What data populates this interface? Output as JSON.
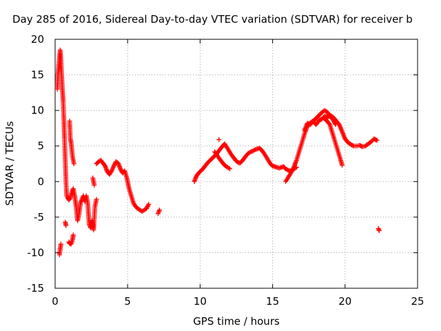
{
  "chart_data": {
    "type": "scatter",
    "title": "Day 285 of 2016, Sidereal Day-to-day VTEC variation (SDTVAR) for receiver b",
    "xlabel": "GPS time / hours",
    "ylabel": "SDTVAR / TECUs",
    "xlim": [
      0,
      25
    ],
    "ylim": [
      -15,
      20
    ],
    "xticks": [
      "0",
      "5",
      "10",
      "15",
      "20",
      "25"
    ],
    "yticks": [
      "-15",
      "-10",
      "-5",
      "0",
      "5",
      "10",
      "15",
      "20"
    ],
    "grid": true,
    "marker": "+",
    "color": "#ff0000",
    "series": [
      {
        "name": "SDTVAR",
        "segments": [
          [
            [
              0.15,
              13
            ],
            [
              0.2,
              15
            ],
            [
              0.25,
              16.5
            ],
            [
              0.3,
              17.5
            ],
            [
              0.35,
              18.5
            ],
            [
              0.4,
              17
            ],
            [
              0.45,
              15
            ],
            [
              0.5,
              13
            ],
            [
              0.55,
              11.5
            ],
            [
              0.6,
              9
            ],
            [
              0.65,
              6
            ],
            [
              0.7,
              3
            ],
            [
              0.75,
              0
            ],
            [
              0.8,
              -2
            ]
          ],
          [
            [
              0.3,
              -10.3
            ],
            [
              0.35,
              -9.5
            ],
            [
              0.4,
              -8.8
            ]
          ],
          [
            [
              0.7,
              -5.7
            ],
            [
              0.75,
              -6.2
            ]
          ],
          [
            [
              0.95,
              -8.5
            ],
            [
              1.0,
              -8.7
            ],
            [
              1.1,
              -8.8
            ],
            [
              1.2,
              -8.2
            ],
            [
              1.25,
              -7.5
            ]
          ],
          [
            [
              0.85,
              -2.2
            ],
            [
              0.95,
              -2.6
            ],
            [
              1.05,
              -2.3
            ],
            [
              1.15,
              -1.5
            ],
            [
              1.25,
              -1.0
            ],
            [
              1.35,
              -2.0
            ],
            [
              1.45,
              -3.5
            ],
            [
              1.55,
              -5.5
            ],
            [
              1.65,
              -4.5
            ],
            [
              1.75,
              -3.0
            ],
            [
              1.85,
              -2.5
            ],
            [
              1.95,
              -2.0
            ],
            [
              2.05,
              -2.8
            ],
            [
              2.15,
              -2.0
            ],
            [
              2.25,
              -3.0
            ],
            [
              2.35,
              -6.0
            ],
            [
              2.45,
              -6.5
            ],
            [
              2.55,
              -5.5
            ],
            [
              2.65,
              -6.8
            ],
            [
              2.75,
              -3.5
            ],
            [
              2.85,
              -2.5
            ]
          ],
          [
            [
              1.0,
              8.5
            ],
            [
              1.05,
              6
            ],
            [
              1.1,
              5.5
            ],
            [
              1.2,
              3.5
            ],
            [
              1.3,
              2.5
            ]
          ],
          [
            [
              2.6,
              0.5
            ],
            [
              2.7,
              -0.5
            ]
          ],
          [
            [
              2.85,
              2.5
            ],
            [
              3.0,
              2.8
            ],
            [
              3.15,
              3.0
            ],
            [
              3.3,
              2.6
            ],
            [
              3.45,
              2.2
            ],
            [
              3.6,
              1.4
            ],
            [
              3.75,
              1.0
            ],
            [
              3.9,
              1.5
            ],
            [
              4.05,
              2.2
            ],
            [
              4.2,
              2.8
            ],
            [
              4.35,
              2.6
            ],
            [
              4.5,
              1.8
            ],
            [
              4.65,
              1.2
            ],
            [
              4.8,
              1.5
            ],
            [
              4.95,
              0.5
            ],
            [
              5.1,
              -1.0
            ],
            [
              5.25,
              -2.0
            ],
            [
              5.4,
              -3.0
            ],
            [
              5.55,
              -3.5
            ],
            [
              5.7,
              -3.8
            ],
            [
              5.85,
              -4.0
            ],
            [
              6.0,
              -4.2
            ],
            [
              6.15,
              -4.0
            ],
            [
              6.3,
              -3.8
            ],
            [
              6.45,
              -3.2
            ]
          ],
          [
            [
              7.1,
              -4.5
            ],
            [
              7.2,
              -4.0
            ]
          ],
          [
            [
              9.6,
              0.0
            ],
            [
              9.75,
              0.8
            ],
            [
              9.9,
              1.2
            ],
            [
              10.05,
              1.5
            ],
            [
              10.2,
              1.8
            ],
            [
              10.35,
              2.2
            ],
            [
              10.5,
              2.6
            ],
            [
              10.65,
              2.9
            ],
            [
              10.8,
              3.2
            ],
            [
              10.95,
              3.5
            ],
            [
              11.1,
              3.8
            ],
            [
              11.25,
              4.2
            ],
            [
              11.4,
              4.6
            ],
            [
              11.55,
              5.0
            ],
            [
              11.7,
              5.3
            ]
          ],
          [
            [
              11.3,
              5.9
            ]
          ],
          [
            [
              11.0,
              4.2
            ],
            [
              11.15,
              3.8
            ],
            [
              11.3,
              3.3
            ],
            [
              11.45,
              2.9
            ],
            [
              11.6,
              2.5
            ],
            [
              11.75,
              2.2
            ],
            [
              11.9,
              2.0
            ],
            [
              12.05,
              1.8
            ]
          ],
          [
            [
              11.7,
              5.2
            ],
            [
              11.85,
              4.8
            ],
            [
              12.0,
              4.3
            ],
            [
              12.15,
              3.8
            ],
            [
              12.3,
              3.4
            ],
            [
              12.45,
              3.0
            ],
            [
              12.6,
              2.7
            ],
            [
              12.75,
              2.6
            ],
            [
              12.9,
              2.9
            ],
            [
              13.05,
              3.3
            ],
            [
              13.2,
              3.7
            ],
            [
              13.35,
              4.0
            ],
            [
              13.5,
              4.2
            ],
            [
              13.65,
              4.3
            ],
            [
              13.8,
              4.5
            ],
            [
              13.95,
              4.6
            ],
            [
              14.1,
              4.7
            ],
            [
              14.25,
              4.4
            ],
            [
              14.4,
              4.0
            ],
            [
              14.55,
              3.5
            ],
            [
              14.7,
              3.0
            ],
            [
              14.85,
              2.5
            ],
            [
              15.0,
              2.2
            ],
            [
              15.15,
              2.1
            ],
            [
              15.3,
              2.0
            ],
            [
              15.45,
              1.9
            ],
            [
              15.6,
              2.0
            ],
            [
              15.75,
              2.1
            ],
            [
              15.9,
              1.8
            ],
            [
              16.05,
              1.6
            ],
            [
              16.2,
              1.5
            ],
            [
              16.35,
              1.6
            ],
            [
              16.5,
              1.8
            ],
            [
              16.65,
              2.0
            ]
          ],
          [
            [
              15.9,
              0.0
            ],
            [
              16.05,
              0.5
            ],
            [
              16.2,
              1.0
            ],
            [
              16.35,
              1.5
            ],
            [
              16.5,
              2.2
            ],
            [
              16.65,
              3.0
            ],
            [
              16.8,
              4.0
            ],
            [
              16.95,
              5.0
            ],
            [
              17.1,
              6.0
            ],
            [
              17.25,
              7.0
            ],
            [
              17.4,
              7.8
            ],
            [
              17.55,
              8.2
            ],
            [
              17.7,
              8.4
            ],
            [
              17.85,
              8.6
            ],
            [
              18.0,
              8.9
            ],
            [
              18.15,
              9.2
            ],
            [
              18.3,
              9.5
            ],
            [
              18.45,
              9.8
            ],
            [
              18.6,
              10.0
            ],
            [
              18.75,
              9.8
            ],
            [
              18.9,
              9.4
            ],
            [
              19.05,
              9.0
            ],
            [
              19.2,
              8.6
            ],
            [
              19.35,
              8.0
            ]
          ],
          [
            [
              18.5,
              9.0
            ],
            [
              18.65,
              8.7
            ],
            [
              18.8,
              8.4
            ],
            [
              18.95,
              8.0
            ],
            [
              19.1,
              7.0
            ],
            [
              19.25,
              6.0
            ],
            [
              19.4,
              5.0
            ],
            [
              19.55,
              4.0
            ],
            [
              19.7,
              3.0
            ],
            [
              19.8,
              2.3
            ]
          ],
          [
            [
              17.2,
              7.2
            ],
            [
              17.4,
              8.2
            ],
            [
              17.6,
              8.0
            ],
            [
              17.8,
              8.4
            ],
            [
              18.0,
              8.0
            ],
            [
              18.2,
              8.6
            ],
            [
              18.4,
              8.8
            ],
            [
              18.6,
              9.2
            ],
            [
              18.8,
              9.0
            ],
            [
              19.0,
              9.3
            ],
            [
              19.2,
              9.0
            ],
            [
              19.4,
              8.5
            ],
            [
              19.6,
              8.0
            ],
            [
              19.8,
              7.0
            ],
            [
              20.0,
              6.0
            ],
            [
              20.2,
              5.5
            ],
            [
              20.4,
              5.2
            ],
            [
              20.6,
              5.0
            ],
            [
              20.8,
              5.0
            ],
            [
              21.0,
              5.1
            ],
            [
              21.2,
              4.9
            ],
            [
              21.4,
              5.0
            ],
            [
              21.6,
              5.3
            ],
            [
              21.8,
              5.6
            ],
            [
              22.0,
              6.0
            ],
            [
              22.2,
              5.8
            ]
          ],
          [
            [
              22.3,
              -6.6
            ],
            [
              22.35,
              -6.9
            ]
          ]
        ]
      }
    ]
  }
}
